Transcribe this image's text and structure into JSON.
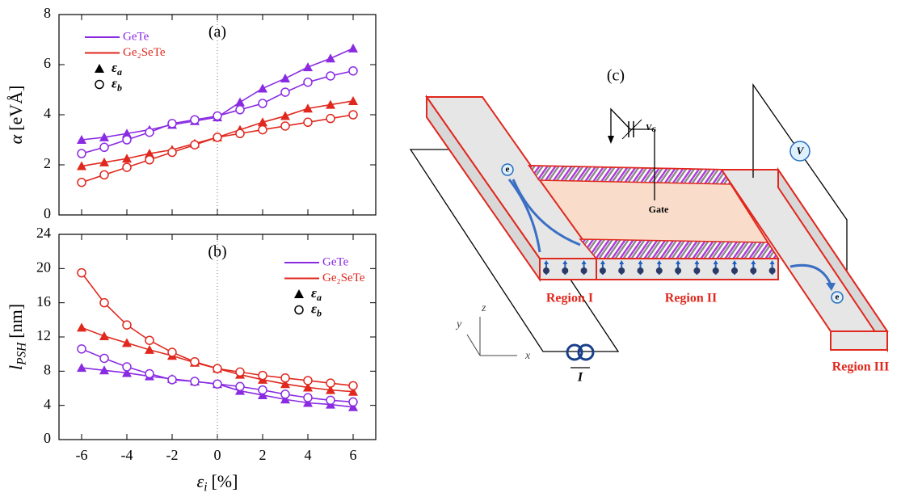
{
  "chart_data": [
    {
      "type": "line",
      "panel_label": "(a)",
      "ylabel": {
        "base": "α",
        "unit": "[eVÅ]"
      },
      "xlim": [
        -7,
        7
      ],
      "xticks": [
        -6,
        -4,
        -2,
        0,
        2,
        4,
        6
      ],
      "show_xtick_labels": false,
      "ylim": [
        0,
        8
      ],
      "yticks": [
        0,
        2,
        4,
        6,
        8
      ],
      "zero_line": 0,
      "legend": "upper left",
      "x": [
        -6,
        -5,
        -4,
        -3,
        -2,
        -1,
        0,
        1,
        2,
        3,
        4,
        5,
        6
      ],
      "materials": [
        {
          "name": "GeTe",
          "color": "#8a2be2"
        },
        {
          "name": "Ge₂SeTe",
          "color": "#e0281e"
        }
      ],
      "markers": [
        {
          "base": "ε",
          "sub": "a",
          "symbol": "triangle"
        },
        {
          "base": "ε",
          "sub": "b",
          "symbol": "circle"
        }
      ],
      "series": [
        {
          "material": 0,
          "marker": 0,
          "values": [
            3.0,
            3.1,
            3.25,
            3.4,
            3.6,
            3.75,
            3.9,
            4.5,
            5.05,
            5.45,
            5.9,
            6.25,
            6.65
          ]
        },
        {
          "material": 0,
          "marker": 1,
          "values": [
            2.45,
            2.7,
            3.0,
            3.3,
            3.65,
            3.8,
            3.95,
            4.2,
            4.45,
            4.9,
            5.3,
            5.55,
            5.75
          ]
        },
        {
          "material": 1,
          "marker": 0,
          "values": [
            1.95,
            2.1,
            2.25,
            2.45,
            2.6,
            2.85,
            3.1,
            3.4,
            3.7,
            3.95,
            4.25,
            4.4,
            4.55
          ]
        },
        {
          "material": 1,
          "marker": 1,
          "values": [
            1.3,
            1.6,
            1.9,
            2.2,
            2.5,
            2.8,
            3.1,
            3.25,
            3.4,
            3.55,
            3.7,
            3.85,
            4.0
          ]
        }
      ]
    },
    {
      "type": "line",
      "panel_label": "(b)",
      "ylabel": {
        "base": "l",
        "sub": "PSH",
        "unit": "[nm]"
      },
      "xlabel": {
        "base": "ε",
        "sub": "i",
        "unit": "[%]"
      },
      "xlim": [
        -7,
        7
      ],
      "xticks": [
        -6,
        -4,
        -2,
        0,
        2,
        4,
        6
      ],
      "show_xtick_labels": true,
      "ylim": [
        0,
        24
      ],
      "yticks": [
        0,
        4,
        8,
        12,
        16,
        20,
        24
      ],
      "zero_line": 0,
      "legend": "upper right",
      "x": [
        -6,
        -5,
        -4,
        -3,
        -2,
        -1,
        0,
        1,
        2,
        3,
        4,
        5,
        6
      ],
      "materials": [
        {
          "name": "GeTe",
          "color": "#8a2be2"
        },
        {
          "name": "Ge₂SeTe",
          "color": "#e0281e"
        }
      ],
      "markers": [
        {
          "base": "ε",
          "sub": "a",
          "symbol": "triangle"
        },
        {
          "base": "ε",
          "sub": "b",
          "symbol": "circle"
        }
      ],
      "series": [
        {
          "material": 0,
          "marker": 0,
          "values": [
            8.4,
            8.1,
            7.8,
            7.4,
            7.1,
            6.8,
            6.5,
            5.7,
            5.2,
            4.7,
            4.3,
            4.1,
            3.8
          ]
        },
        {
          "material": 0,
          "marker": 1,
          "values": [
            10.6,
            9.5,
            8.5,
            7.7,
            7.0,
            6.8,
            6.5,
            6.2,
            5.8,
            5.3,
            4.9,
            4.6,
            4.4
          ]
        },
        {
          "material": 1,
          "marker": 0,
          "values": [
            13.1,
            12.1,
            11.3,
            10.5,
            9.8,
            9.0,
            8.3,
            7.6,
            7.0,
            6.5,
            6.1,
            5.8,
            5.6
          ]
        },
        {
          "material": 1,
          "marker": 1,
          "values": [
            19.5,
            16.0,
            13.4,
            11.6,
            10.2,
            9.1,
            8.3,
            7.9,
            7.5,
            7.2,
            6.9,
            6.6,
            6.3
          ]
        }
      ]
    }
  ],
  "diagram": {
    "label": "(c)",
    "gate_voltage": {
      "base": "V",
      "sub": "G"
    },
    "voltmeter": "V",
    "gate": "Gate",
    "regions": [
      "Region I",
      "Region II",
      "Region III"
    ],
    "axes": [
      "x",
      "y",
      "z"
    ],
    "current": "I",
    "electron": "e"
  }
}
